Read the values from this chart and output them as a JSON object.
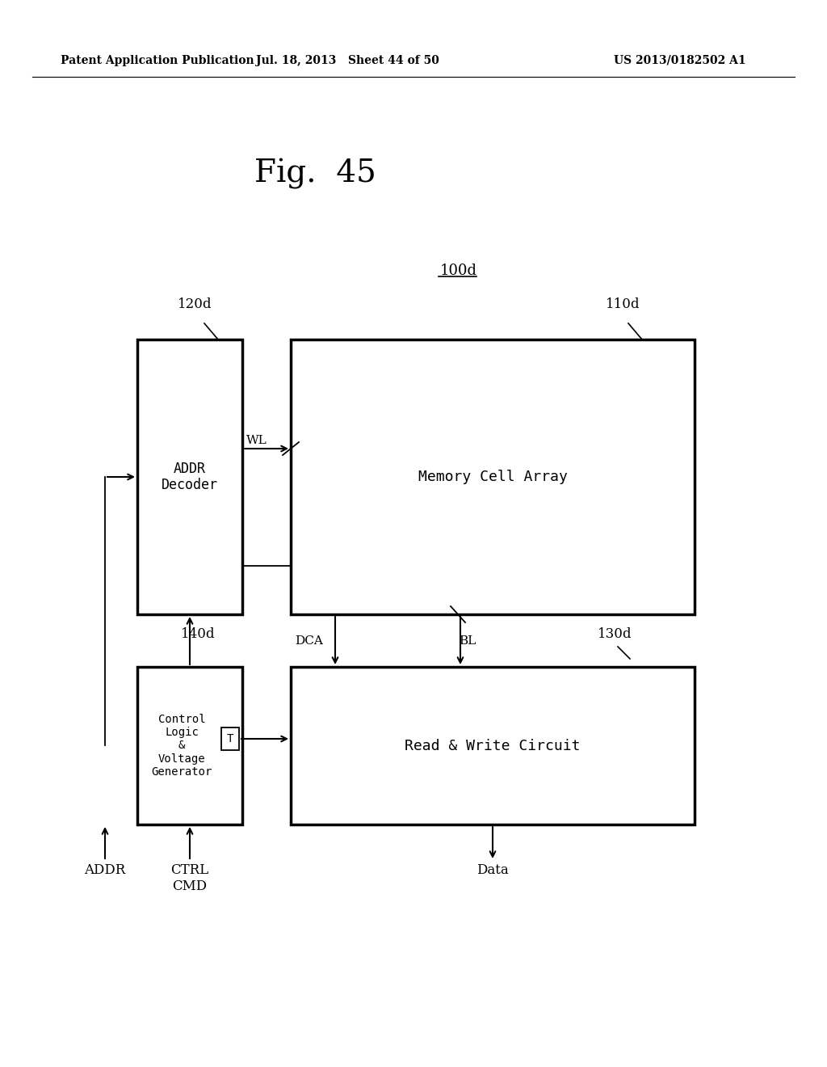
{
  "bg_color": "#ffffff",
  "fig_title": "Fig.  45",
  "header_left": "Patent Application Publication",
  "header_mid": "Jul. 18, 2013   Sheet 44 of 50",
  "header_right": "US 2013/0182502 A1",
  "label_100d": "100d",
  "label_120d": "120d",
  "label_110d": "110d",
  "label_140d": "140d",
  "label_130d": "130d",
  "label_WL": "WL",
  "label_DCA": "DCA",
  "label_BL": "BL",
  "label_ADDR": "ADDR",
  "label_CTRL_CMD": "CTRL\nCMD",
  "label_Data": "Data",
  "label_T": "T",
  "box_addr_decoder_label": "ADDR\nDecoder",
  "box_memory_cell_label": "Memory Cell Array",
  "box_control_logic_label": "Control\nLogic\n&\nVoltage\nGenerator",
  "box_rw_circuit_label": "Read & Write Circuit"
}
